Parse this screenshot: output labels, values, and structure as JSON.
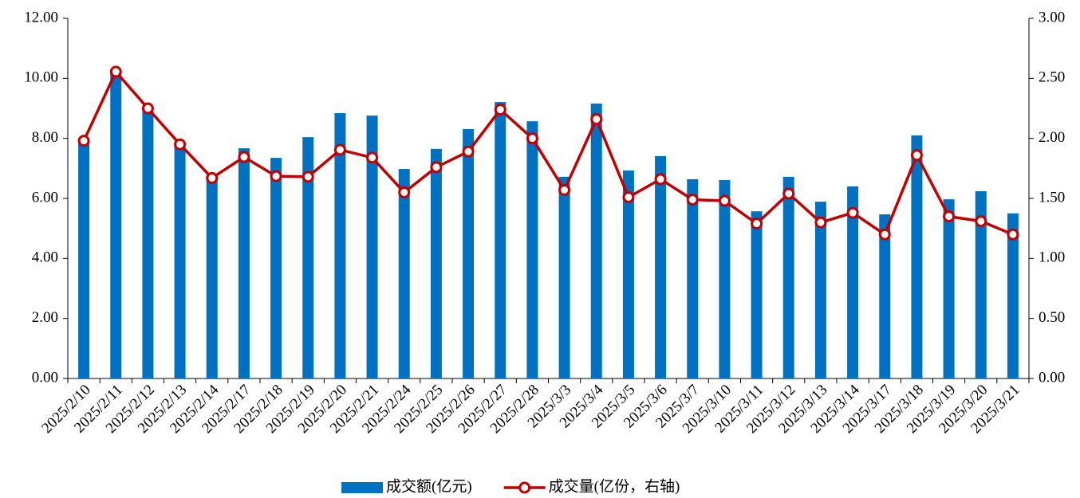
{
  "chart_data": {
    "type": "bar_line",
    "categories": [
      "2025/2/10",
      "2025/2/11",
      "2025/2/12",
      "2025/2/13",
      "2025/2/14",
      "2025/2/17",
      "2025/2/18",
      "2025/2/19",
      "2025/2/20",
      "2025/2/21",
      "2025/2/24",
      "2025/2/25",
      "2025/2/26",
      "2025/2/27",
      "2025/2/28",
      "2025/3/3",
      "2025/3/4",
      "2025/3/5",
      "2025/3/6",
      "2025/3/7",
      "2025/3/10",
      "2025/3/11",
      "2025/3/12",
      "2025/3/13",
      "2025/3/14",
      "2025/3/17",
      "2025/3/18",
      "2025/3/19",
      "2025/3/20",
      "2025/3/21"
    ],
    "series": [
      {
        "name": "成交额(亿元)",
        "type": "bar",
        "color": "#0070c0",
        "values": [
          7.9,
          10.2,
          9.0,
          7.8,
          6.7,
          7.67,
          7.35,
          8.04,
          8.84,
          8.76,
          6.98,
          7.65,
          8.31,
          9.21,
          8.57,
          6.72,
          9.16,
          6.93,
          7.41,
          6.64,
          6.61,
          5.57,
          6.72,
          5.89,
          6.4,
          5.47,
          8.1,
          5.97,
          6.24,
          5.5
        ]
      },
      {
        "name": "成交量(亿份，右轴)",
        "type": "line",
        "axis": "y2",
        "color": "#c00000",
        "values": [
          1.98,
          2.555,
          2.25,
          1.95,
          1.67,
          1.845,
          1.685,
          1.68,
          1.905,
          1.84,
          1.55,
          1.76,
          1.89,
          2.24,
          2.0,
          1.57,
          2.16,
          1.51,
          1.66,
          1.49,
          1.48,
          1.29,
          1.54,
          1.3,
          1.38,
          1.2,
          1.86,
          1.35,
          1.31,
          1.2
        ]
      }
    ],
    "ylim": [
      0,
      12
    ],
    "yticks": [
      {
        "value": 0,
        "label": "0.00"
      },
      {
        "value": 2,
        "label": "2.00"
      },
      {
        "value": 4,
        "label": "4.00"
      },
      {
        "value": 6,
        "label": "6.00"
      },
      {
        "value": 8,
        "label": "8.00"
      },
      {
        "value": 10,
        "label": "10.00"
      },
      {
        "value": 12,
        "label": "12.00"
      }
    ],
    "y2lim": [
      0,
      3
    ],
    "y2ticks": [
      {
        "value": 0,
        "label": "0.00"
      },
      {
        "value": 0.5,
        "label": "0.50"
      },
      {
        "value": 1,
        "label": "1.00"
      },
      {
        "value": 1.5,
        "label": "1.50"
      },
      {
        "value": 2,
        "label": "2.00"
      },
      {
        "value": 2.5,
        "label": "2.50"
      },
      {
        "value": 3,
        "label": "3.00"
      }
    ],
    "legend": "bottom",
    "grid": false
  }
}
